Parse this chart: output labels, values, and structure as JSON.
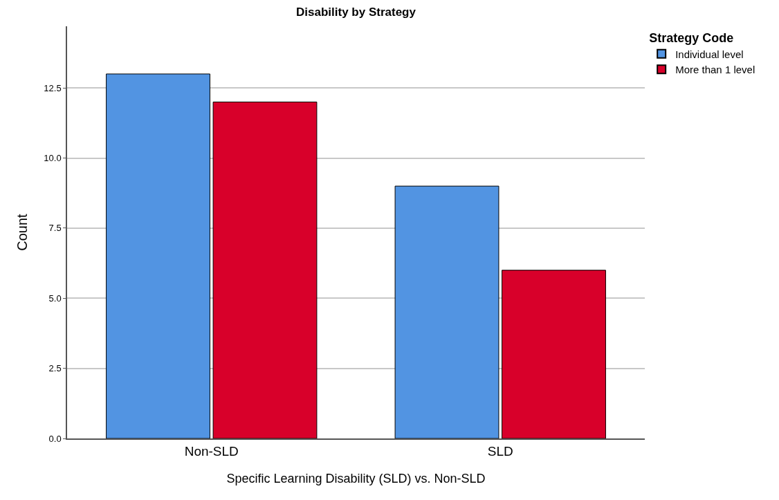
{
  "chart_data": {
    "type": "bar",
    "title": "Disability by Strategy",
    "xlabel": "Specific Learning Disability (SLD) vs. Non-SLD",
    "ylabel": "Count",
    "legend_title": "Strategy Code",
    "categories": [
      "Non-SLD",
      "SLD"
    ],
    "series": [
      {
        "name": "Individual level",
        "color": "#5294e2",
        "values": [
          13,
          9
        ]
      },
      {
        "name": "More than 1 level",
        "color": "#d8002a",
        "values": [
          12,
          6
        ]
      }
    ],
    "ylim": [
      0,
      14.7
    ],
    "yticks": [
      {
        "value": 0,
        "label": "0.0"
      },
      {
        "value": 2.5,
        "label": "2.5"
      },
      {
        "value": 5,
        "label": "5.0"
      },
      {
        "value": 7.5,
        "label": "7.5"
      },
      {
        "value": 10,
        "label": "10.0"
      },
      {
        "value": 12.5,
        "label": "12.5"
      }
    ],
    "grid": "y",
    "legend": "top right"
  }
}
